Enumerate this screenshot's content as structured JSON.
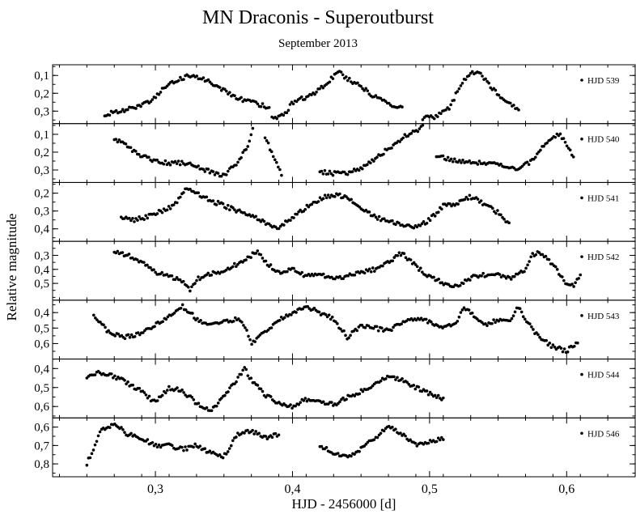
{
  "chart_data": {
    "type": "scatter",
    "title": "MN Draconis - Superoutburst",
    "subtitle": "September 2013",
    "xlabel": "HJD - 2456000 [d]",
    "ylabel": "Relative magnitude",
    "xlim": [
      0.225,
      0.65
    ],
    "xticks": [
      "0,3",
      "0,4",
      "0,5",
      "0,6"
    ],
    "grid": false,
    "legend": "top-right of each panel",
    "panels": [
      {
        "name": "HJD 539",
        "ylim": [
          0.37,
          0.04
        ],
        "yticks": [
          "0,1",
          "0,2",
          "0,3"
        ],
        "segments": [
          {
            "x": [
              0.263,
              0.275,
              0.285,
              0.295,
              0.305,
              0.315,
              0.325,
              0.335,
              0.345,
              0.355,
              0.365,
              0.375,
              0.383
            ],
            "y": [
              0.32,
              0.3,
              0.28,
              0.25,
              0.18,
              0.13,
              0.1,
              0.12,
              0.16,
              0.21,
              0.24,
              0.26,
              0.28
            ]
          },
          {
            "x": [
              0.385,
              0.39,
              0.396,
              0.4,
              0.41,
              0.42,
              0.428,
              0.434,
              0.44,
              0.45,
              0.46,
              0.47,
              0.48
            ],
            "y": [
              0.34,
              0.33,
              0.3,
              0.25,
              0.22,
              0.18,
              0.12,
              0.08,
              0.12,
              0.16,
              0.22,
              0.26,
              0.28
            ]
          },
          {
            "x": [
              0.495,
              0.505,
              0.515,
              0.522,
              0.53,
              0.538,
              0.545,
              0.555,
              0.565
            ],
            "y": [
              0.34,
              0.33,
              0.28,
              0.16,
              0.08,
              0.1,
              0.17,
              0.24,
              0.29
            ]
          }
        ]
      },
      {
        "name": "HJD 540",
        "ylim": [
          0.37,
          0.04
        ],
        "yticks": [
          "0,1",
          "0,2",
          "0,3"
        ],
        "segments": [
          {
            "x": [
              0.27,
              0.28,
              0.29,
              0.3,
              0.31,
              0.32,
              0.33,
              0.34,
              0.35,
              0.36,
              0.368,
              0.371
            ],
            "y": [
              0.12,
              0.17,
              0.22,
              0.25,
              0.26,
              0.26,
              0.28,
              0.31,
              0.33,
              0.26,
              0.16,
              0.07
            ]
          },
          {
            "x": [
              0.38,
              0.383,
              0.387,
              0.39,
              0.392
            ],
            "y": [
              0.12,
              0.17,
              0.23,
              0.29,
              0.33
            ]
          },
          {
            "x": [
              0.42,
              0.43,
              0.44,
              0.45,
              0.46,
              0.47,
              0.48,
              0.49,
              0.495
            ],
            "y": [
              0.31,
              0.32,
              0.32,
              0.29,
              0.24,
              0.18,
              0.12,
              0.08,
              0.06
            ]
          },
          {
            "x": [
              0.505,
              0.52,
              0.535,
              0.55,
              0.565,
              0.575,
              0.585,
              0.595,
              0.605
            ],
            "y": [
              0.22,
              0.25,
              0.26,
              0.27,
              0.29,
              0.25,
              0.14,
              0.1,
              0.22
            ]
          }
        ]
      },
      {
        "name": "HJD 541",
        "ylim": [
          0.47,
          0.14
        ],
        "yticks": [
          "0,2",
          "0,3",
          "0,4"
        ],
        "segments": [
          {
            "x": [
              0.275,
              0.285,
              0.295,
              0.305,
              0.315,
              0.322,
              0.33,
              0.34,
              0.35,
              0.36,
              0.37,
              0.38,
              0.39,
              0.4,
              0.41,
              0.42,
              0.43,
              0.44,
              0.45,
              0.46,
              0.47,
              0.48,
              0.49,
              0.5,
              0.51,
              0.52,
              0.53,
              0.54,
              0.55,
              0.558
            ],
            "y": [
              0.34,
              0.35,
              0.33,
              0.3,
              0.26,
              0.18,
              0.2,
              0.24,
              0.27,
              0.3,
              0.32,
              0.37,
              0.39,
              0.34,
              0.28,
              0.23,
              0.21,
              0.22,
              0.28,
              0.33,
              0.36,
              0.38,
              0.39,
              0.35,
              0.27,
              0.26,
              0.22,
              0.26,
              0.31,
              0.37
            ]
          }
        ]
      },
      {
        "name": "HJD 542",
        "ylim": [
          0.62,
          0.2
        ],
        "yticks": [
          "0,3",
          "0,4",
          "0,5"
        ],
        "segments": [
          {
            "x": [
              0.27,
              0.28,
              0.29,
              0.3,
              0.31,
              0.32,
              0.325,
              0.33,
              0.34,
              0.35,
              0.36,
              0.37,
              0.375,
              0.38,
              0.39,
              0.4,
              0.41,
              0.42,
              0.43,
              0.44,
              0.45,
              0.46,
              0.47,
              0.48,
              0.49,
              0.5,
              0.51,
              0.52,
              0.53,
              0.54,
              0.55,
              0.56,
              0.57,
              0.575,
              0.58,
              0.59,
              0.6,
              0.605,
              0.61
            ],
            "y": [
              0.28,
              0.3,
              0.35,
              0.42,
              0.45,
              0.48,
              0.55,
              0.47,
              0.43,
              0.41,
              0.36,
              0.3,
              0.27,
              0.35,
              0.42,
              0.4,
              0.45,
              0.44,
              0.46,
              0.45,
              0.42,
              0.4,
              0.35,
              0.28,
              0.38,
              0.45,
              0.5,
              0.52,
              0.46,
              0.44,
              0.44,
              0.46,
              0.4,
              0.3,
              0.28,
              0.36,
              0.5,
              0.52,
              0.44
            ]
          }
        ]
      },
      {
        "name": "HJD 543",
        "ylim": [
          0.7,
          0.32
        ],
        "yticks": [
          "0,4",
          "0,5",
          "0,6"
        ],
        "segments": [
          {
            "x": [
              0.255,
              0.265,
              0.275,
              0.285,
              0.295,
              0.305,
              0.315,
              0.32,
              0.33,
              0.34,
              0.35,
              0.36,
              0.365,
              0.37,
              0.38,
              0.39,
              0.4,
              0.41,
              0.42,
              0.43,
              0.44,
              0.45,
              0.46,
              0.47,
              0.48,
              0.49,
              0.5,
              0.51,
              0.52,
              0.525,
              0.53,
              0.54,
              0.55,
              0.56,
              0.565,
              0.57,
              0.58,
              0.59,
              0.6,
              0.608
            ],
            "y": [
              0.42,
              0.52,
              0.56,
              0.55,
              0.5,
              0.46,
              0.4,
              0.36,
              0.44,
              0.48,
              0.46,
              0.44,
              0.48,
              0.6,
              0.52,
              0.45,
              0.4,
              0.36,
              0.4,
              0.44,
              0.56,
              0.48,
              0.5,
              0.52,
              0.46,
              0.44,
              0.46,
              0.5,
              0.46,
              0.36,
              0.4,
              0.48,
              0.45,
              0.44,
              0.36,
              0.45,
              0.56,
              0.62,
              0.65,
              0.59
            ]
          }
        ]
      },
      {
        "name": "HJD 544",
        "ylim": [
          0.66,
          0.35
        ],
        "yticks": [
          "0,4",
          "0,5",
          "0,6"
        ],
        "segments": [
          {
            "x": [
              0.25,
              0.26,
              0.27,
              0.28,
              0.29,
              0.3,
              0.31,
              0.32,
              0.33,
              0.34,
              0.35,
              0.36,
              0.365,
              0.37,
              0.38,
              0.39,
              0.4,
              0.41,
              0.42,
              0.43,
              0.44,
              0.45,
              0.46,
              0.47,
              0.48,
              0.49,
              0.5,
              0.51
            ],
            "y": [
              0.44,
              0.42,
              0.44,
              0.48,
              0.52,
              0.58,
              0.5,
              0.52,
              0.58,
              0.62,
              0.55,
              0.45,
              0.4,
              0.46,
              0.54,
              0.58,
              0.6,
              0.56,
              0.58,
              0.59,
              0.55,
              0.52,
              0.48,
              0.44,
              0.46,
              0.5,
              0.53,
              0.56
            ]
          }
        ]
      },
      {
        "name": "HJD 546",
        "ylim": [
          0.87,
          0.55
        ],
        "yticks": [
          "0,6",
          "0,7",
          "0,8"
        ],
        "segments": [
          {
            "x": [
              0.25,
              0.26,
              0.27,
              0.28,
              0.29,
              0.3,
              0.31,
              0.32,
              0.33,
              0.34,
              0.35,
              0.36,
              0.37,
              0.38,
              0.39
            ],
            "y": [
              0.8,
              0.62,
              0.58,
              0.64,
              0.66,
              0.7,
              0.7,
              0.72,
              0.7,
              0.74,
              0.76,
              0.64,
              0.62,
              0.66,
              0.64
            ]
          },
          {
            "x": [
              0.42,
              0.43,
              0.44,
              0.45,
              0.46,
              0.47,
              0.48,
              0.49,
              0.5,
              0.51
            ],
            "y": [
              0.7,
              0.74,
              0.76,
              0.72,
              0.66,
              0.6,
              0.64,
              0.7,
              0.68,
              0.66
            ]
          }
        ]
      }
    ]
  }
}
